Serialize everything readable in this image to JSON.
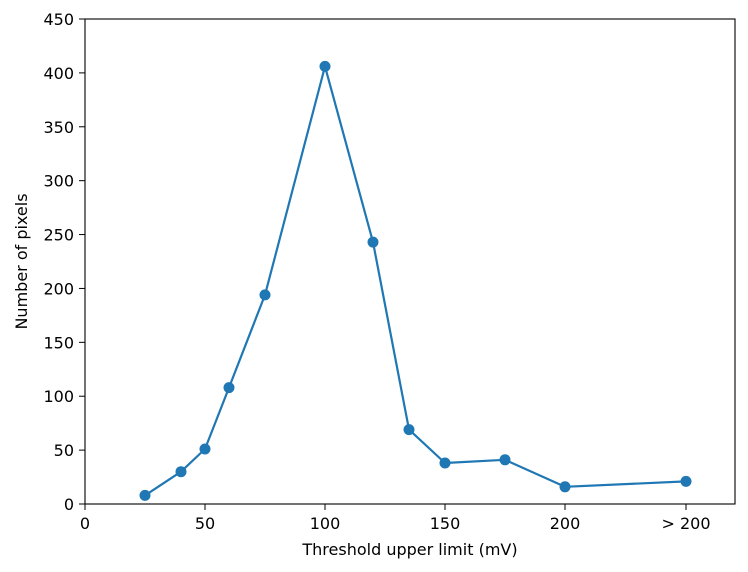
{
  "chart_data": {
    "type": "line",
    "title": "",
    "xlabel": "Threshold upper limit (mV)",
    "ylabel": "Number of pixels",
    "xlim": [
      0,
      220
    ],
    "ylim": [
      0,
      450
    ],
    "x_ticks": [
      {
        "value": 0,
        "label": "0"
      },
      {
        "value": 50,
        "label": "50"
      },
      {
        "value": 100,
        "label": "100"
      },
      {
        "value": 150,
        "label": "150"
      },
      {
        "value": 200,
        "label": "200"
      },
      {
        "value": 250,
        "label": "> 200"
      }
    ],
    "y_ticks": [
      {
        "value": 0,
        "label": "0"
      },
      {
        "value": 50,
        "label": "50"
      },
      {
        "value": 100,
        "label": "100"
      },
      {
        "value": 150,
        "label": "150"
      },
      {
        "value": 200,
        "label": "200"
      },
      {
        "value": 250,
        "label": "250"
      },
      {
        "value": 300,
        "label": "300"
      },
      {
        "value": 350,
        "label": "350"
      },
      {
        "value": 400,
        "label": "400"
      },
      {
        "value": 450,
        "label": "450"
      }
    ],
    "grid": false,
    "legend": false,
    "series": [
      {
        "color": "#1f77b4",
        "marker": "circle",
        "x": [
          25,
          40,
          50,
          60,
          75,
          100,
          120,
          135,
          150,
          175,
          200,
          250
        ],
        "y": [
          8,
          30,
          51,
          108,
          194,
          406,
          243,
          69,
          38,
          41,
          16,
          21
        ]
      }
    ]
  }
}
